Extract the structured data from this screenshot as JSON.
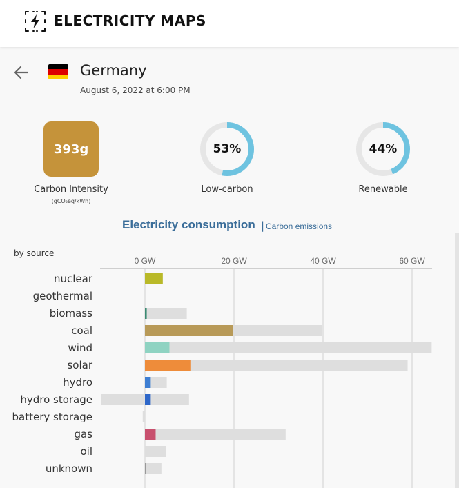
{
  "header": {
    "app_title": "ELECTRICITY MAPS",
    "logo_icon": "lightning-bolt-icon"
  },
  "zone": {
    "name": "Germany",
    "datetime": "August 6, 2022 at 6:00 PM",
    "flag_colors": [
      "#000000",
      "#dd0000",
      "#ffce00"
    ]
  },
  "metrics": {
    "carbon_intensity": {
      "value": "393g",
      "label": "Carbon Intensity",
      "unit": "(gCO₂eq/kWh)",
      "color": "#c5933a"
    },
    "low_carbon": {
      "value": "53%",
      "label": "Low-carbon",
      "fraction": 0.53
    },
    "renewable": {
      "value": "44%",
      "label": "Renewable",
      "fraction": 0.44
    },
    "ring_color": "#6ec3e0",
    "ring_track_color": "#e6e6e6"
  },
  "tabs": {
    "active": "Electricity consumption",
    "separator": "|",
    "inactive": "Carbon emissions"
  },
  "by_source_label": "by source",
  "chart_data": {
    "type": "bar",
    "orientation": "horizontal",
    "xlabel": "",
    "ylabel": "",
    "unit": "GW",
    "x_ticks": [
      "0 GW",
      "20 GW",
      "40 GW",
      "60 GW"
    ],
    "xlim": [
      -10,
      64.5
    ],
    "grid": true,
    "categories": [
      "nuclear",
      "geothermal",
      "biomass",
      "coal",
      "wind",
      "solar",
      "hydro",
      "hydro storage",
      "battery storage",
      "gas",
      "oil",
      "unknown"
    ],
    "production": [
      4,
      0,
      0.4,
      19.8,
      5.5,
      10.2,
      1.3,
      1.3,
      0,
      2.4,
      0,
      0.3
    ],
    "capacity": [
      4,
      0,
      9.4,
      39.8,
      64.4,
      59.0,
      4.9,
      9.9,
      0,
      31.6,
      4.8,
      3.7
    ],
    "capacity_min": [
      0,
      0,
      0,
      0,
      0,
      0,
      0,
      -9.8,
      -0.5,
      0,
      0,
      0
    ],
    "colors": [
      "#b9b928",
      "#8a8a8a",
      "#3a8a72",
      "#b89a58",
      "#8fd3c2",
      "#ee8c3a",
      "#3f7fd3",
      "#2e67c9",
      "#aaaaaa",
      "#c8506e",
      "#888888",
      "#999999"
    ],
    "capacity_color": "#dedede"
  }
}
